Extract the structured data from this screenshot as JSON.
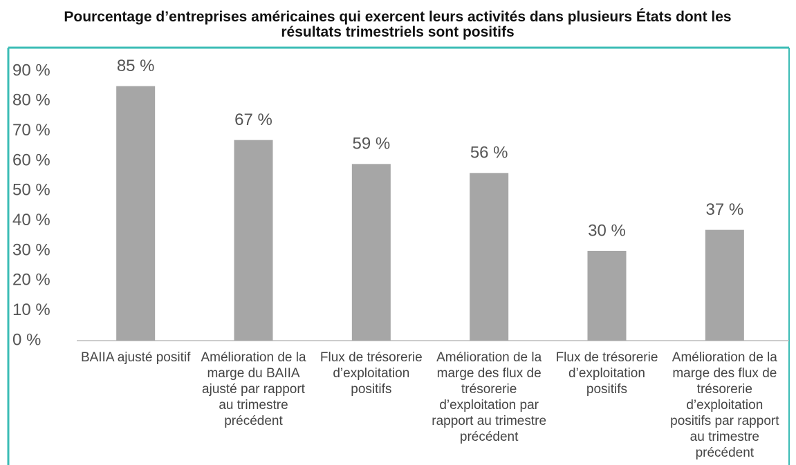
{
  "chart_data": {
    "type": "bar",
    "title": "Pourcentage d’entreprises américaines qui exercent leurs activités dans plusieurs États dont les résultats trimestriels sont positifs",
    "categories": [
      "BAIIA ajusté positif",
      "Amélioration de la marge du BAIIA ajusté par rapport au trimestre précédent",
      "Flux de trésorerie d’exploitation positifs",
      "Amélioration de la marge des flux de trésorerie d’exploitation par rapport au trimestre précédent",
      "Flux de trésorerie d’exploitation positifs",
      "Amélioration de la marge des flux de trésorerie d’exploitation positifs par rapport au trimestre précédent"
    ],
    "values": [
      85,
      67,
      59,
      56,
      30,
      37
    ],
    "value_labels": [
      "85 %",
      "67 %",
      "59 %",
      "56 %",
      "30 %",
      "37 %"
    ],
    "color": "#a6a6a6",
    "ylim": [
      0,
      90
    ],
    "yticks": [
      {
        "value": 0,
        "label": "0 %"
      },
      {
        "value": 10,
        "label": "10 %"
      },
      {
        "value": 20,
        "label": "20 %"
      },
      {
        "value": 30,
        "label": "30 %"
      },
      {
        "value": 40,
        "label": "40 %"
      },
      {
        "value": 50,
        "label": "50 %"
      },
      {
        "value": 60,
        "label": "60 %"
      },
      {
        "value": 70,
        "label": "70 %"
      },
      {
        "value": 80,
        "label": "80 %"
      },
      {
        "value": 90,
        "label": "90 %"
      }
    ],
    "grid": false
  }
}
